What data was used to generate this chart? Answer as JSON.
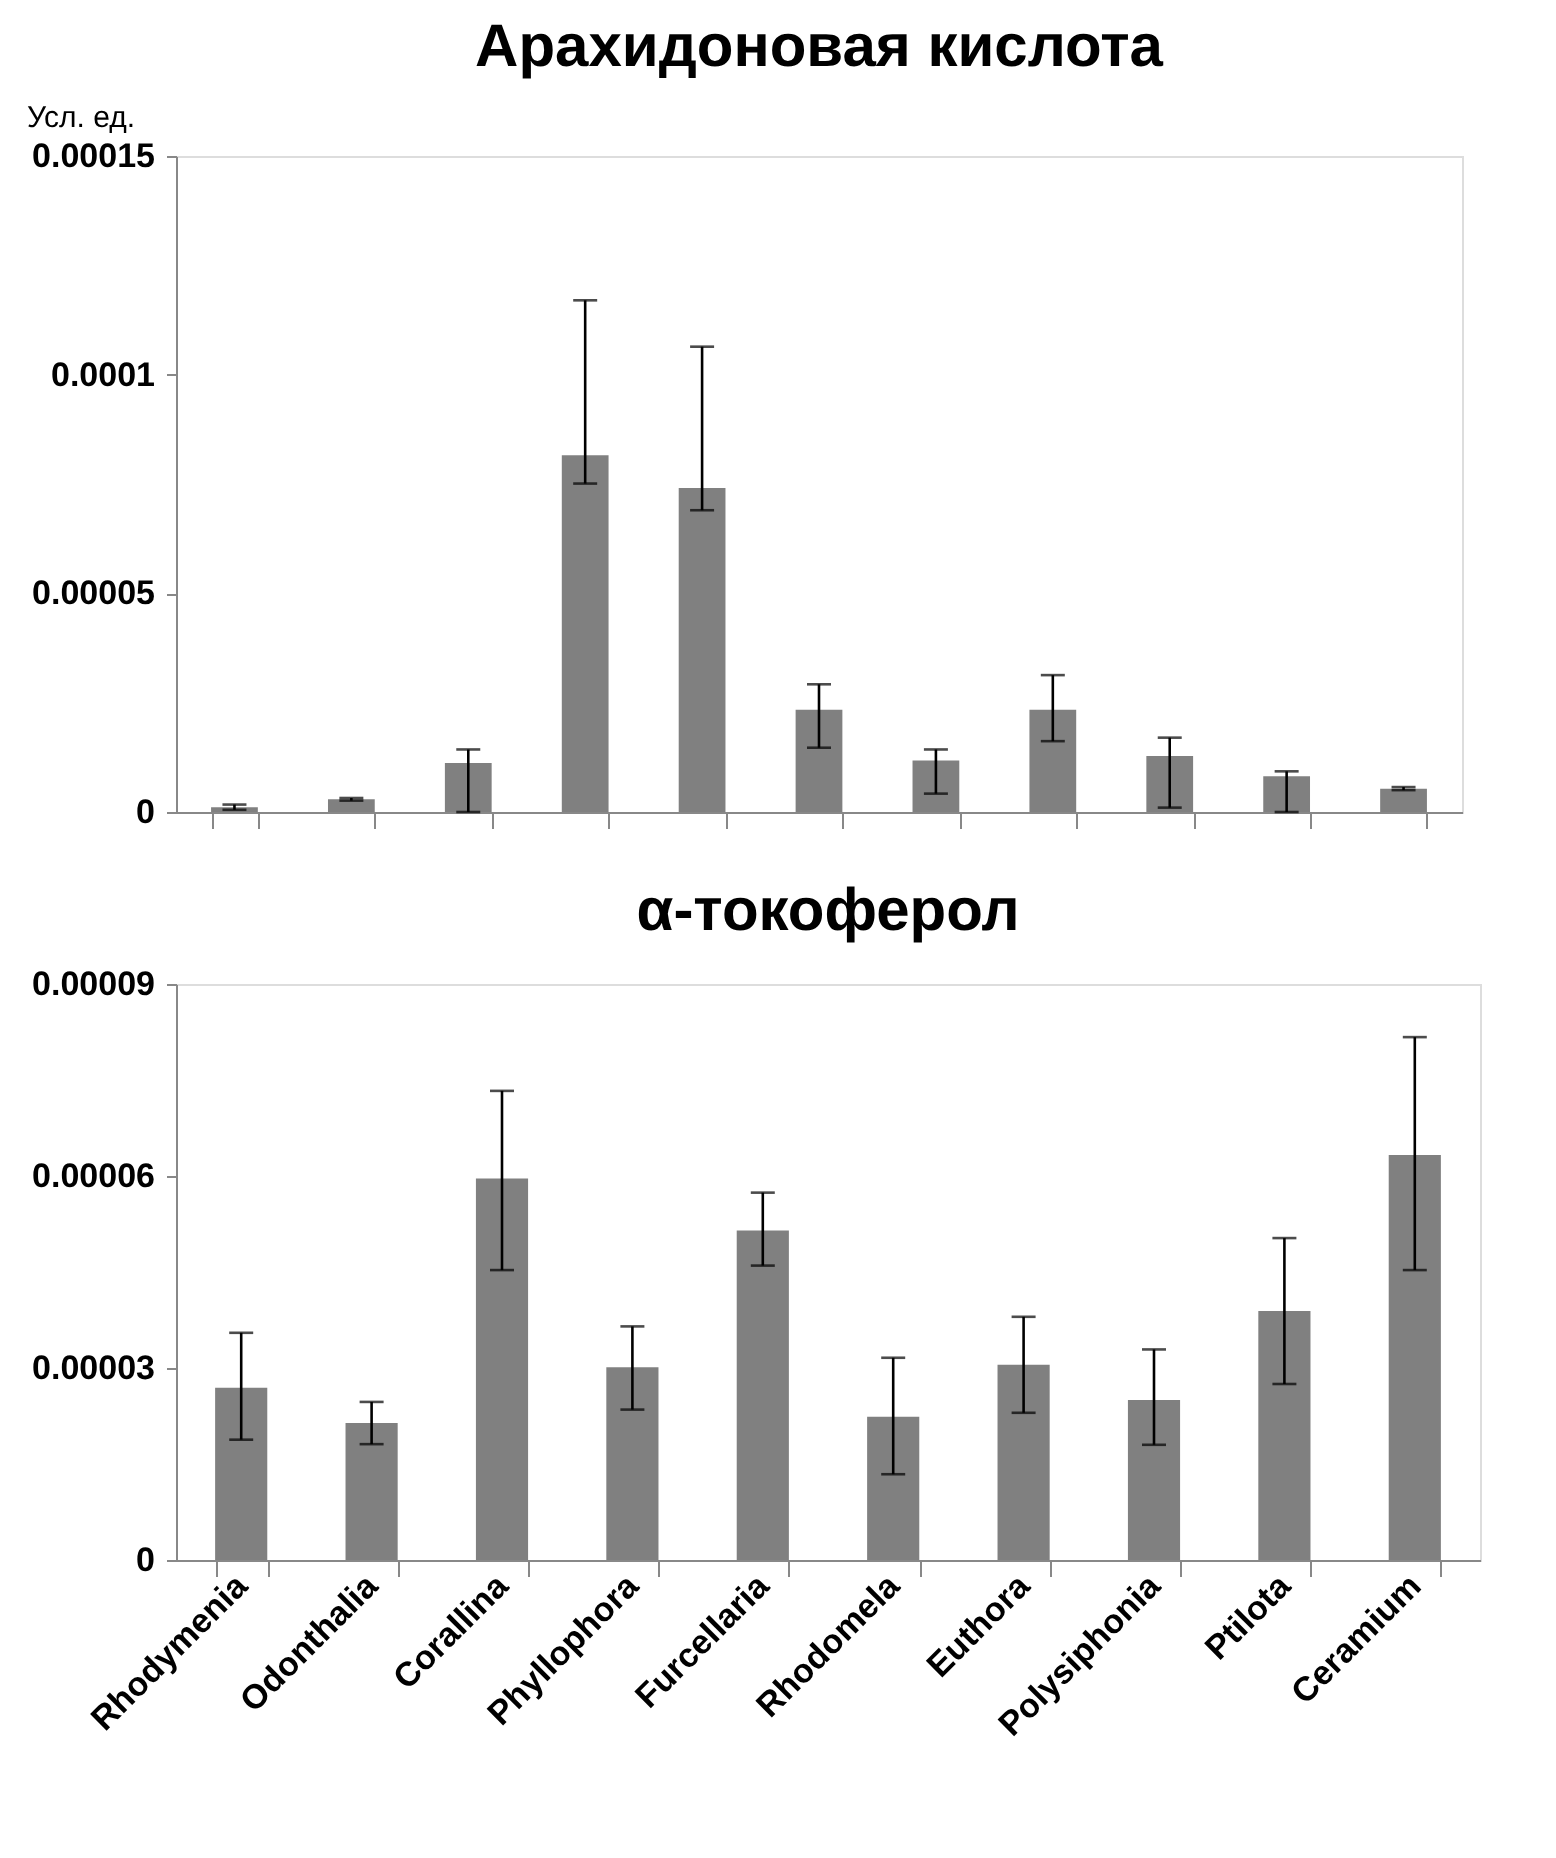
{
  "chart_data": [
    {
      "type": "bar",
      "title": "Арахидоновая кислота",
      "ylabel": "Усл. ед.",
      "categories": [
        null,
        null,
        null,
        null,
        null,
        null,
        null,
        null,
        null,
        null,
        null
      ],
      "color": "#808080",
      "values": [
        1.1e-06,
        2.9e-06,
        1.12e-05,
        8.16e-05,
        7.41e-05,
        2.34e-05,
        1.18e-05,
        2.34e-05,
        1.28e-05,
        8.2e-06,
        5.3e-06
      ],
      "errors": [
        [
          5e-07,
          1.7e-06
        ],
        [
          2.6e-06,
          3.2e-06
        ],
        [
          0,
          1.43e-05
        ],
        [
          7.51e-05,
          0.000117
        ],
        [
          6.9e-05,
          0.0001064
        ],
        [
          1.47e-05,
          2.92e-05
        ],
        [
          4.2e-06,
          1.43e-05
        ],
        [
          1.62e-05,
          3.13e-05
        ],
        [
          1e-06,
          1.7e-05
        ],
        [
          0,
          9.3e-06
        ],
        [
          5e-06,
          5.7e-06
        ]
      ],
      "ylim": [
        0,
        0.00015
      ],
      "yticks": [
        0,
        {
          "value": 5e-05,
          "label": "0.00005"
        },
        0.0001,
        0.00015
      ],
      "tick_labels": "y",
      "grid": false
    },
    {
      "type": "bar",
      "title": "α-токоферол",
      "categories": [
        "Rhodymenia",
        "Odonthalia",
        "Corallina",
        "Phyllophora",
        "Furcellaria",
        "Rhodomela",
        "Euthora",
        "Polysiphonia",
        "Ptilota",
        "Ceramium"
      ],
      "color": "#808080",
      "values": [
        2.69e-05,
        2.14e-05,
        5.96e-05,
        3.01e-05,
        5.15e-05,
        2.24e-05,
        3.05e-05,
        2.5e-05,
        3.89e-05,
        6.33e-05
      ],
      "errors": [
        [
          1.88e-05,
          3.55e-05
        ],
        [
          1.81e-05,
          2.47e-05
        ],
        [
          4.53e-05,
          7.33e-05
        ],
        [
          2.35e-05,
          3.65e-05
        ],
        [
          4.6e-05,
          5.74e-05
        ],
        [
          1.34e-05,
          3.16e-05
        ],
        [
          2.3e-05,
          3.8e-05
        ],
        [
          1.8e-05,
          3.29e-05
        ],
        [
          2.75e-05,
          5.03e-05
        ],
        [
          4.53e-05,
          8.17e-05
        ]
      ],
      "ylim": [
        0,
        9e-05
      ],
      "yticks": [
        0,
        {
          "value": 3e-05,
          "label": "0.00003"
        },
        {
          "value": 6e-05,
          "label": "0.00006"
        },
        {
          "value": 9e-05,
          "label": "0.00009"
        }
      ],
      "grid": false
    }
  ]
}
